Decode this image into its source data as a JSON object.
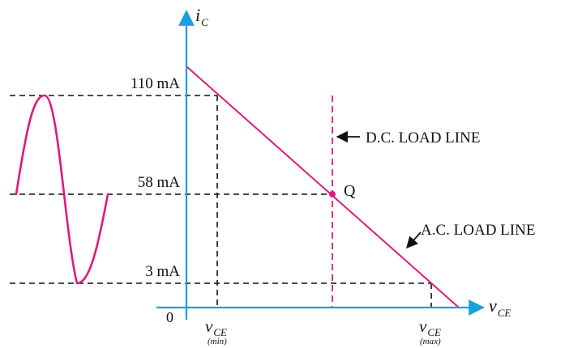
{
  "axes": {
    "y_symbol": "i",
    "y_subscript": "C",
    "x_symbol": "v",
    "x_subscript": "CE",
    "origin": "0"
  },
  "levels": {
    "max": "110 mA",
    "q": "58 mA",
    "min": "3 mA"
  },
  "vce_labels": {
    "min_symbol": "v",
    "min_subscript": "CE",
    "min_note": "(min)",
    "max_symbol": "v",
    "max_subscript": "CE",
    "max_note": "(max)"
  },
  "annotations": {
    "q_point": "Q",
    "dc_load_line": "D.C. LOAD LINE",
    "ac_load_line": "A.C. LOAD LINE"
  },
  "colors": {
    "axis": "#1aa0dc",
    "load_line": "#e0197d",
    "dashed": "#111111"
  }
}
